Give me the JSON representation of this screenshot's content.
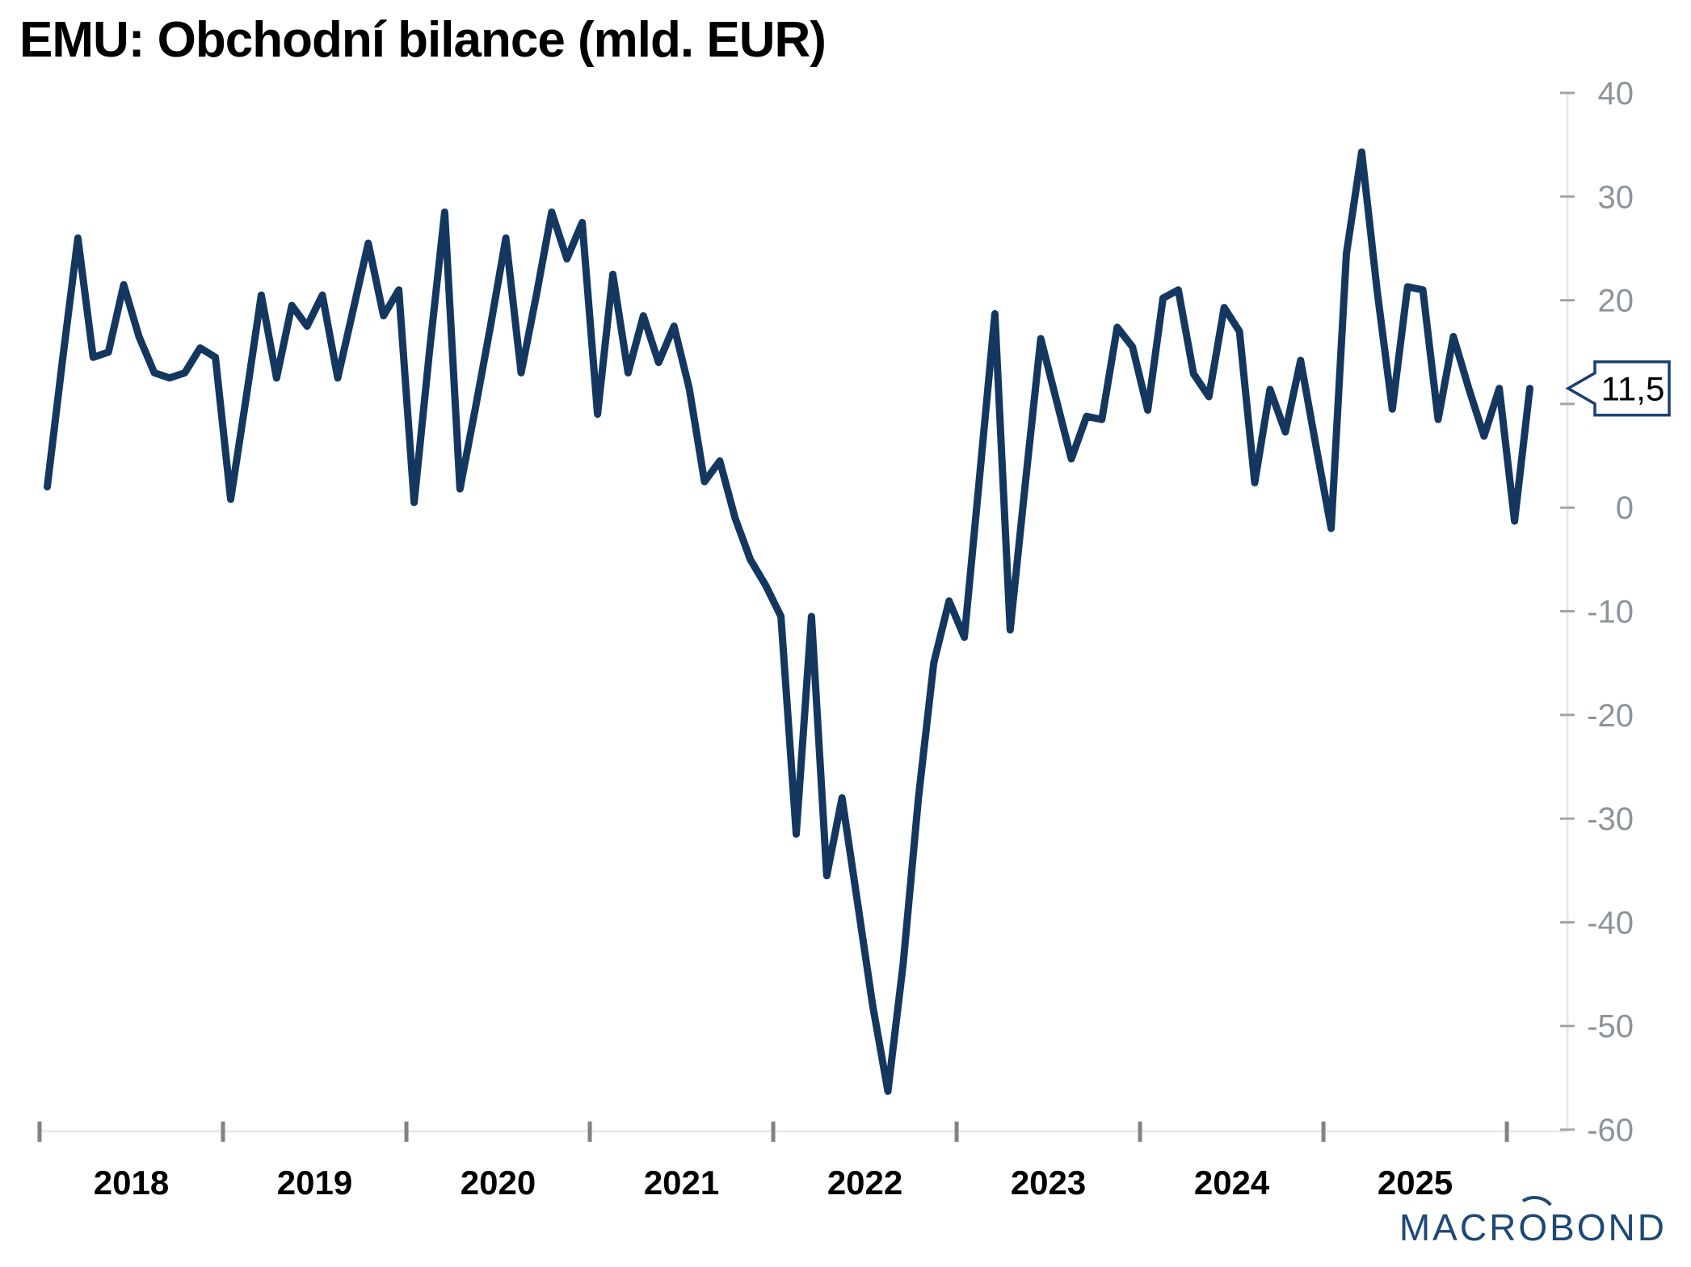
{
  "title": "EMU: Obchodní bilance (mld. EUR)",
  "logo": {
    "part1": "MACR",
    "o": "O",
    "part2": "BOND"
  },
  "colors": {
    "line": "#14375f",
    "axis_line": "#e7e9ea",
    "y_tick": "#a0a5a9",
    "x_tick": "#7d8387",
    "y_label": "#8d9499",
    "x_label": "#000000",
    "callout_border": "#1c4170",
    "callout_fill": "#ffffff",
    "callout_text": "#000000",
    "background": "#ffffff"
  },
  "chart_data": {
    "type": "line",
    "title": "EMU: Obchodní bilance (mld. EUR)",
    "ylabel": "mld. EUR",
    "grid": false,
    "legend": false,
    "y_axis": {
      "side": "right",
      "range": [
        -60,
        40
      ],
      "ticks": [
        40,
        30,
        20,
        10,
        0,
        -10,
        -20,
        -30,
        -40,
        -50,
        -60
      ]
    },
    "x_axis": {
      "range": [
        2018.0,
        2026.33
      ],
      "tick_positions": [
        2018,
        2019,
        2020,
        2021,
        2022,
        2023,
        2024,
        2025,
        2026
      ],
      "labels": [
        "2018",
        "2019",
        "2020",
        "2021",
        "2022",
        "2023",
        "2024",
        "2025"
      ],
      "label_positions": [
        2018.5,
        2019.5,
        2020.5,
        2021.5,
        2022.5,
        2023.5,
        2024.5,
        2025.5
      ]
    },
    "last_value": 11.5,
    "last_value_label": "11,5",
    "series": [
      {
        "name": "Obchodní bilance EMU",
        "color": "#14375f",
        "x_start": 2018.042,
        "x_step_years": 0.083333,
        "values": [
          2.0,
          14.3,
          26.0,
          14.5,
          15.0,
          21.5,
          16.5,
          13.0,
          12.5,
          13.0,
          15.4,
          14.5,
          0.8,
          10.5,
          20.5,
          12.5,
          19.5,
          17.5,
          20.5,
          12.5,
          19.0,
          25.5,
          18.5,
          21.0,
          0.5,
          15.0,
          28.5,
          1.8,
          9.5,
          17.5,
          26.0,
          13.0,
          20.5,
          28.5,
          24.0,
          27.5,
          9.0,
          22.5,
          13.0,
          18.5,
          14.0,
          17.5,
          11.5,
          2.5,
          4.5,
          -1.0,
          -5.0,
          -7.5,
          -10.5,
          -31.5,
          -10.5,
          -35.5,
          -28.0,
          -38.0,
          -48.0,
          -56.3,
          -44.0,
          -28.0,
          -15.0,
          -9.0,
          -12.5,
          3.0,
          18.7,
          -11.8,
          2.5,
          16.3,
          10.5,
          4.7,
          8.8,
          8.5,
          17.4,
          15.5,
          9.4,
          20.2,
          21.0,
          12.9,
          10.7,
          19.3,
          17.0,
          2.4,
          11.4,
          7.3,
          14.2,
          6.0,
          -2.0,
          24.5,
          34.3,
          21.0,
          9.5,
          21.3,
          21.0,
          8.5,
          16.5,
          11.5,
          6.9,
          11.5,
          -1.3,
          11.5
        ]
      }
    ]
  }
}
